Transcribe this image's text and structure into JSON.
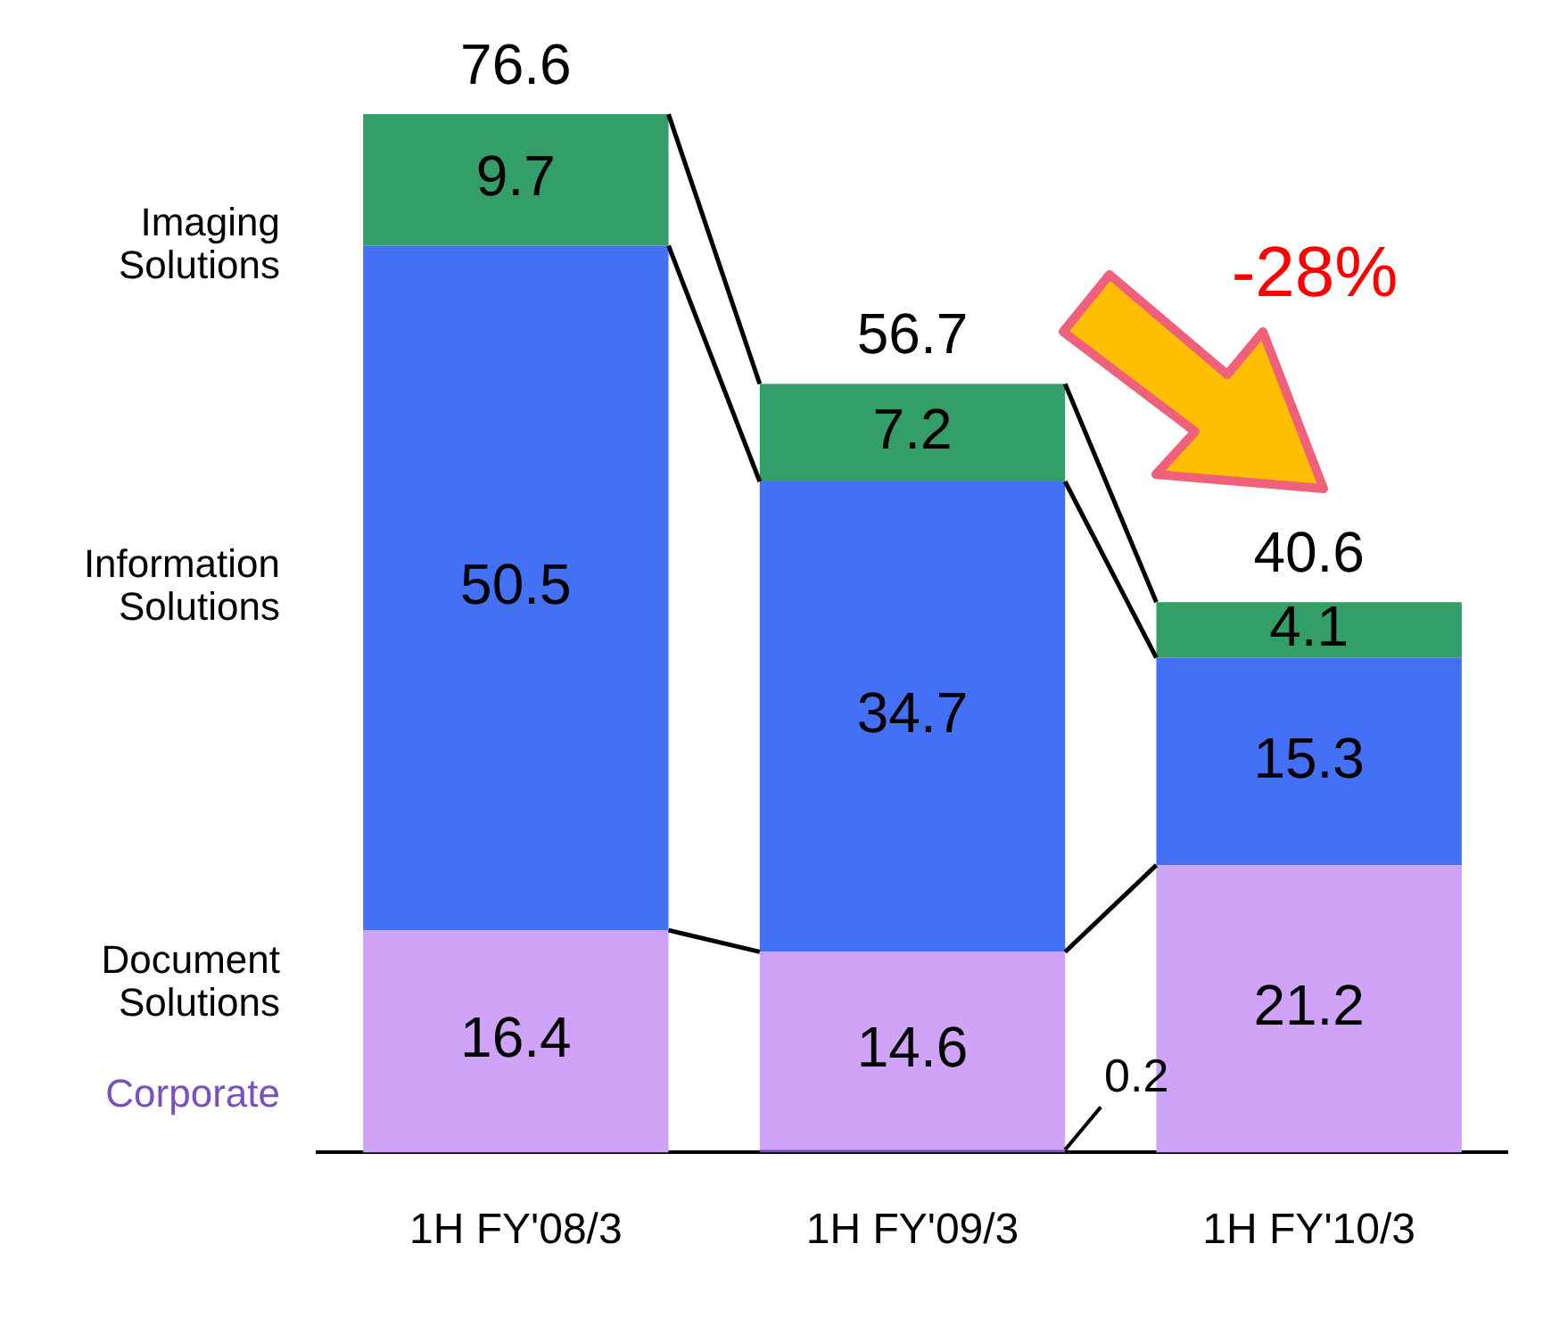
{
  "chart_data": {
    "type": "bar",
    "stacked": true,
    "categories": [
      "1H FY'08/3",
      "1H FY'09/3",
      "1H FY'10/3"
    ],
    "series": [
      {
        "name": "Corporate",
        "color": "#7a4fc0",
        "values": [
          null,
          0.2,
          null
        ],
        "value_labels": [
          null,
          "0.2",
          null
        ]
      },
      {
        "name": "Document Solutions",
        "color": "#cfa3f7",
        "values": [
          16.4,
          14.6,
          21.2
        ]
      },
      {
        "name": "Information Solutions",
        "color": "#4470f5",
        "values": [
          50.5,
          34.7,
          15.3
        ]
      },
      {
        "name": "Imaging Solutions",
        "color": "#339e68",
        "values": [
          9.7,
          7.2,
          4.1
        ]
      }
    ],
    "data_labels": true,
    "totals": [
      "76.6",
      "56.7",
      "40.6"
    ],
    "annotations": [
      "-28%"
    ]
  }
}
